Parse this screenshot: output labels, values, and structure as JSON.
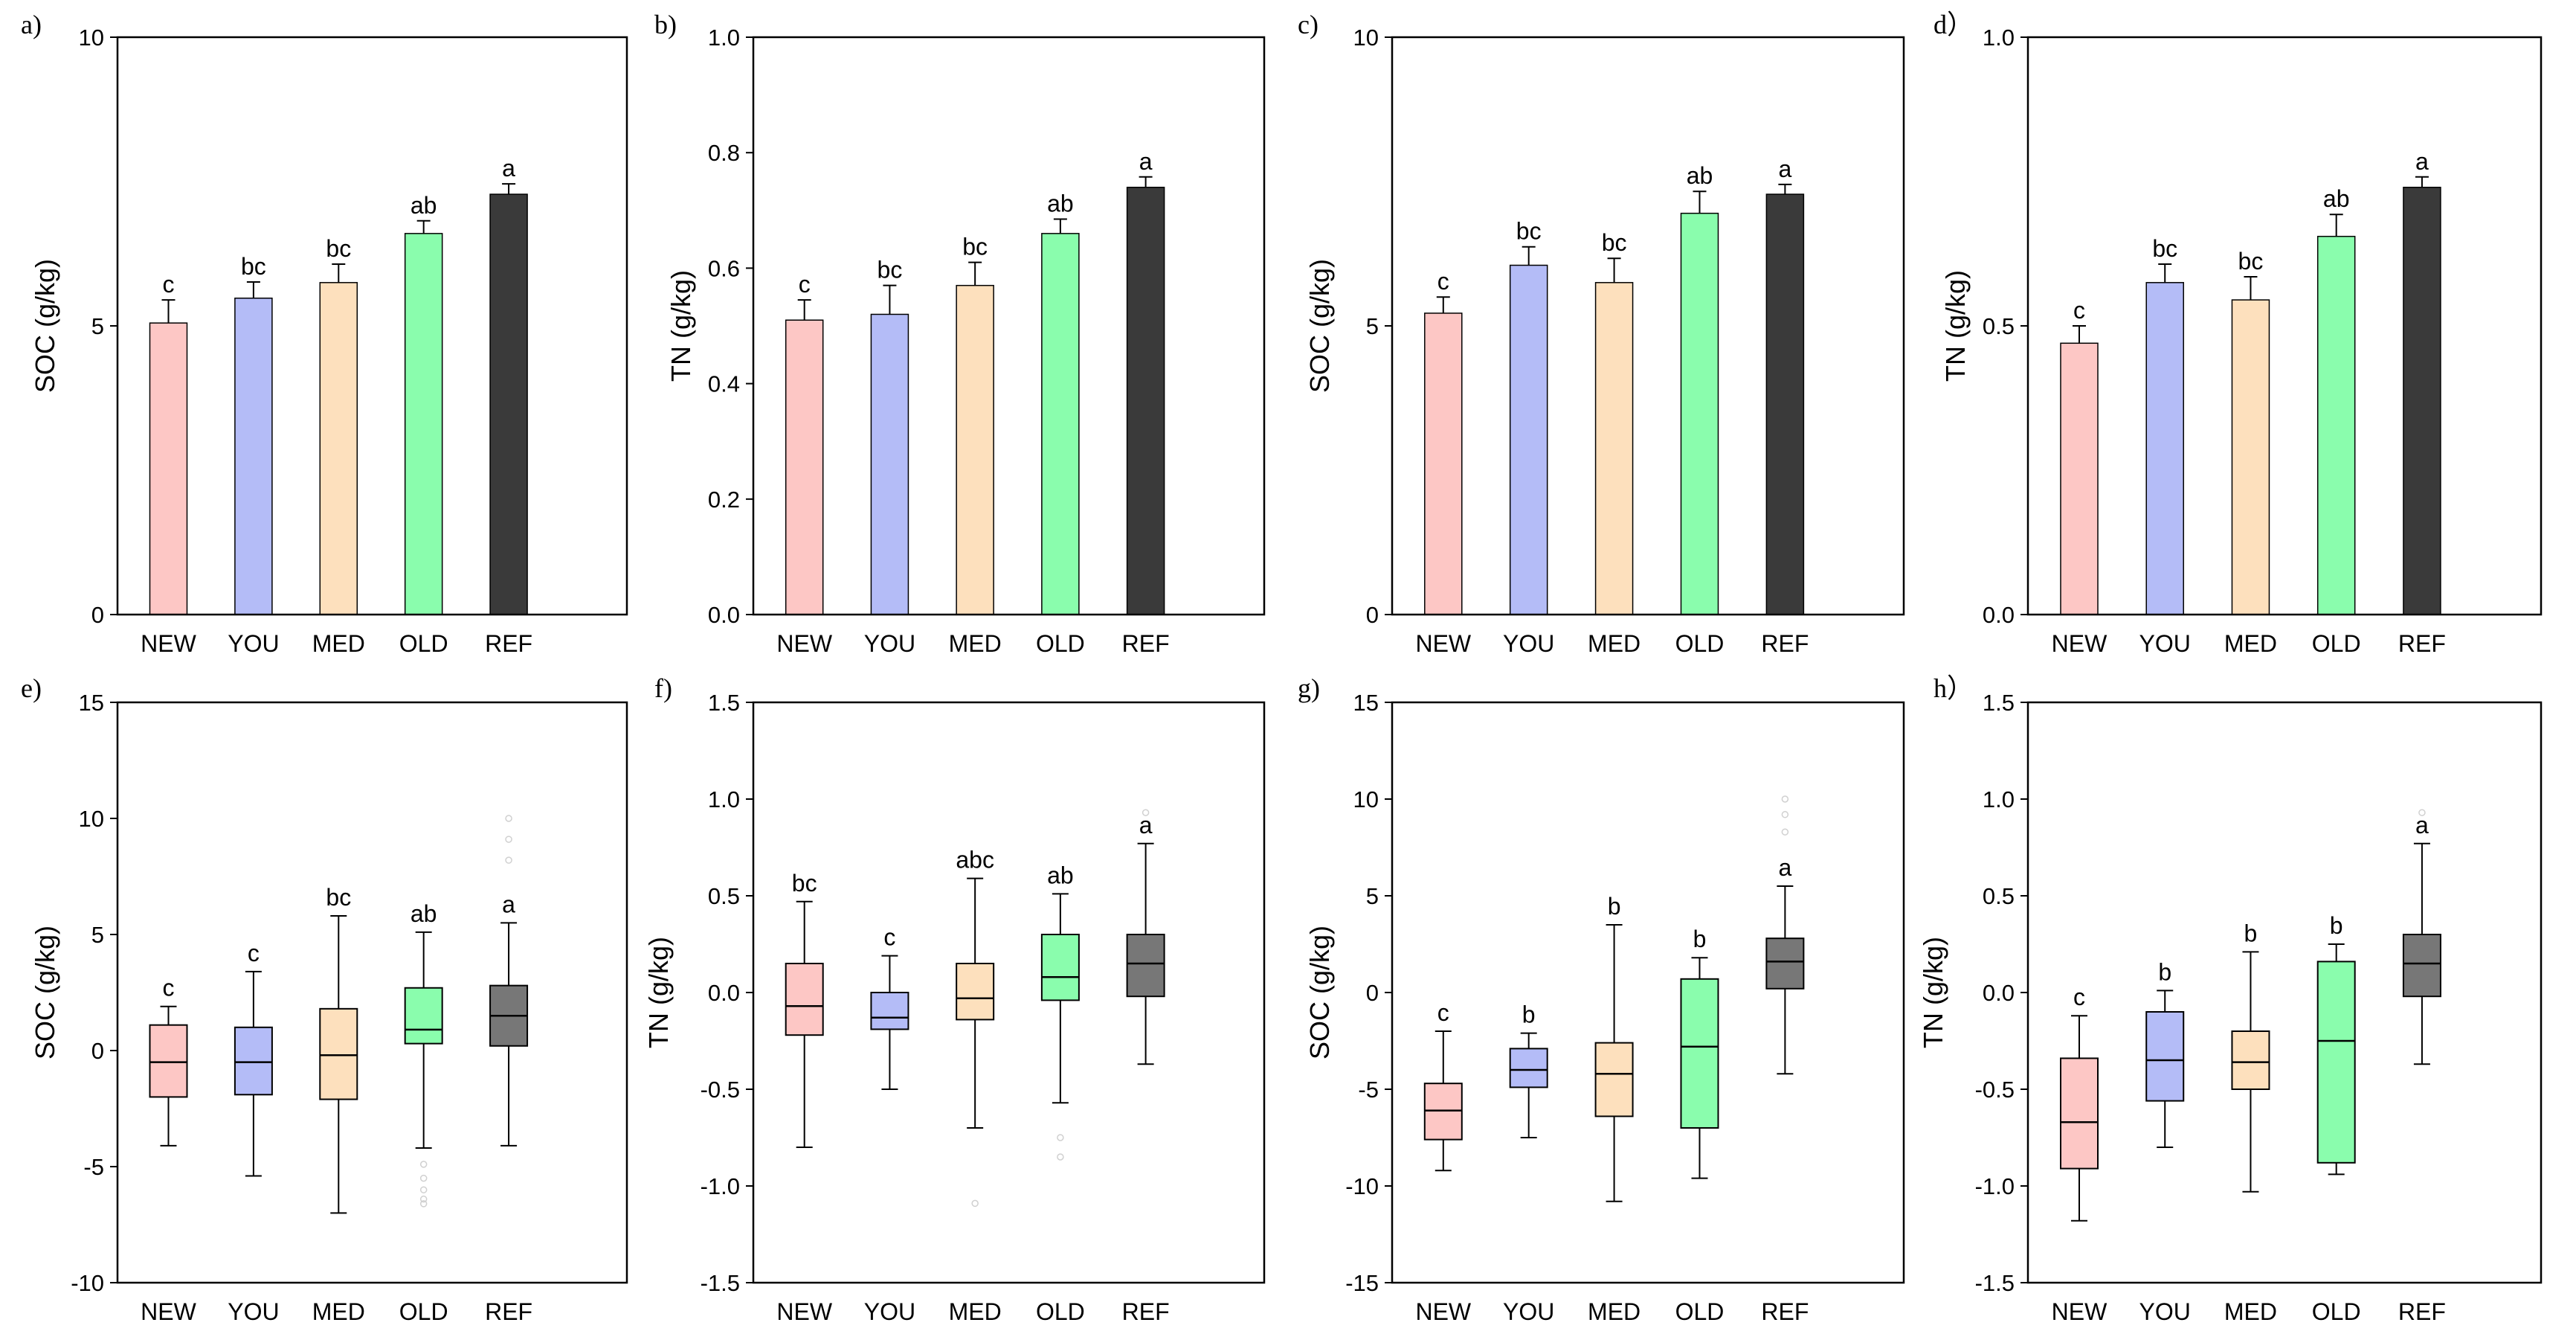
{
  "categories": [
    "NEW",
    "YOU",
    "MED",
    "OLD",
    "REF"
  ],
  "colors": {
    "NEW": "#fdc7c5",
    "YOU": "#b4bcf7",
    "MED": "#fde0bd",
    "OLD": "#8afdad",
    "REF": "#3a3a3a",
    "REF_box": "#777777",
    "outlier": "#d0d0d0"
  },
  "chart_data": [
    {
      "id": "a",
      "label": "a)",
      "type": "bar",
      "ylabel": "SOC (g/kg)",
      "ylim": [
        0,
        10
      ],
      "yticks": [
        "0",
        "5",
        "10"
      ],
      "categories": [
        "NEW",
        "YOU",
        "MED",
        "OLD",
        "REF"
      ],
      "values": [
        5.05,
        5.48,
        5.75,
        6.6,
        7.28
      ],
      "errors": [
        0.4,
        0.28,
        0.32,
        0.22,
        0.18
      ],
      "letters": [
        "c",
        "bc",
        "bc",
        "ab",
        "a"
      ]
    },
    {
      "id": "b",
      "label": "b)",
      "type": "bar",
      "ylabel": "TN (g/kg)",
      "ylim": [
        0,
        1.0
      ],
      "yticks": [
        "0.0",
        "0.2",
        "0.4",
        "0.6",
        "0.8",
        "1.0"
      ],
      "categories": [
        "NEW",
        "YOU",
        "MED",
        "OLD",
        "REF"
      ],
      "values": [
        0.51,
        0.52,
        0.57,
        0.66,
        0.74
      ],
      "errors": [
        0.035,
        0.05,
        0.04,
        0.025,
        0.018
      ],
      "letters": [
        "c",
        "bc",
        "bc",
        "ab",
        "a"
      ]
    },
    {
      "id": "c",
      "label": "c)",
      "type": "bar",
      "ylabel": "SOC (g/kg)",
      "ylim": [
        0,
        10
      ],
      "yticks": [
        "0",
        "5",
        "10"
      ],
      "categories": [
        "NEW",
        "YOU",
        "MED",
        "OLD",
        "REF"
      ],
      "values": [
        5.22,
        6.05,
        5.75,
        6.95,
        7.28
      ],
      "errors": [
        0.28,
        0.32,
        0.42,
        0.38,
        0.17
      ],
      "letters": [
        "c",
        "bc",
        "bc",
        "ab",
        "a"
      ]
    },
    {
      "id": "d",
      "label": "d）",
      "type": "bar",
      "ylabel": "TN (g/kg)",
      "ylim": [
        0,
        1.0
      ],
      "yticks": [
        "0.0",
        "0.5",
        "1.0"
      ],
      "categories": [
        "NEW",
        "YOU",
        "MED",
        "OLD",
        "REF"
      ],
      "values": [
        0.47,
        0.575,
        0.545,
        0.655,
        0.74
      ],
      "errors": [
        0.03,
        0.032,
        0.04,
        0.038,
        0.018
      ],
      "letters": [
        "c",
        "bc",
        "bc",
        "ab",
        "a"
      ]
    },
    {
      "id": "e",
      "label": "e)",
      "type": "box",
      "ylabel": "SOC (g/kg)",
      "ylim": [
        -10,
        15
      ],
      "yticks": [
        "-10",
        "-5",
        "0",
        "5",
        "10",
        "15"
      ],
      "categories": [
        "NEW",
        "YOU",
        "MED",
        "OLD",
        "REF"
      ],
      "boxes": [
        {
          "min": -4.1,
          "q1": -2.0,
          "median": -0.5,
          "q3": 1.1,
          "max": 1.9,
          "outliers": []
        },
        {
          "min": -5.4,
          "q1": -1.9,
          "median": -0.5,
          "q3": 1.0,
          "max": 3.4,
          "outliers": []
        },
        {
          "min": -7.0,
          "q1": -2.1,
          "median": -0.2,
          "q3": 1.8,
          "max": 5.8,
          "outliers": []
        },
        {
          "min": -4.2,
          "q1": 0.3,
          "median": 0.9,
          "q3": 2.7,
          "max": 5.1,
          "outliers": [
            -4.9,
            -5.5,
            -6.0,
            -6.4,
            -6.6
          ]
        },
        {
          "min": -4.1,
          "q1": 0.2,
          "median": 1.5,
          "q3": 2.8,
          "max": 5.5,
          "outliers": [
            8.2,
            9.1,
            10.0
          ]
        }
      ],
      "letters": [
        "c",
        "c",
        "bc",
        "ab",
        "a"
      ]
    },
    {
      "id": "f",
      "label": "f)",
      "type": "box",
      "ylabel": "TN (g/kg)",
      "ylim": [
        -1.5,
        1.5
      ],
      "yticks": [
        "-1.5",
        "-1.0",
        "-0.5",
        "0.0",
        "0.5",
        "1.0",
        "1.5"
      ],
      "categories": [
        "NEW",
        "YOU",
        "MED",
        "OLD",
        "REF"
      ],
      "boxes": [
        {
          "min": -0.8,
          "q1": -0.22,
          "median": -0.07,
          "q3": 0.15,
          "max": 0.47,
          "outliers": []
        },
        {
          "min": -0.5,
          "q1": -0.19,
          "median": -0.13,
          "q3": 0.0,
          "max": 0.19,
          "outliers": []
        },
        {
          "min": -0.7,
          "q1": -0.14,
          "median": -0.03,
          "q3": 0.15,
          "max": 0.59,
          "outliers": [
            -1.09
          ]
        },
        {
          "min": -0.57,
          "q1": -0.04,
          "median": 0.08,
          "q3": 0.3,
          "max": 0.51,
          "outliers": [
            -0.75,
            -0.85
          ]
        },
        {
          "min": -0.37,
          "q1": -0.02,
          "median": 0.15,
          "q3": 0.3,
          "max": 0.77,
          "outliers": [
            0.93
          ]
        }
      ],
      "letters": [
        "bc",
        "c",
        "abc",
        "ab",
        "a"
      ]
    },
    {
      "id": "g",
      "label": "g)",
      "type": "box",
      "ylabel": "SOC (g/kg)",
      "ylim": [
        -15,
        15
      ],
      "yticks": [
        "-15",
        "-10",
        "-5",
        "0",
        "5",
        "10",
        "15"
      ],
      "categories": [
        "NEW",
        "YOU",
        "MED",
        "OLD",
        "REF"
      ],
      "boxes": [
        {
          "min": -9.2,
          "q1": -7.6,
          "median": -6.1,
          "q3": -4.7,
          "max": -2.0,
          "outliers": []
        },
        {
          "min": -7.5,
          "q1": -4.9,
          "median": -4.0,
          "q3": -2.9,
          "max": -2.1,
          "outliers": []
        },
        {
          "min": -10.8,
          "q1": -6.4,
          "median": -4.2,
          "q3": -2.6,
          "max": 3.5,
          "outliers": []
        },
        {
          "min": -9.6,
          "q1": -7.0,
          "median": -2.8,
          "q3": 0.7,
          "max": 1.8,
          "outliers": []
        },
        {
          "min": -4.2,
          "q1": 0.2,
          "median": 1.6,
          "q3": 2.8,
          "max": 5.5,
          "outliers": [
            8.3,
            9.2,
            10.0
          ]
        }
      ],
      "letters": [
        "c",
        "b",
        "b",
        "b",
        "a"
      ]
    },
    {
      "id": "h",
      "label": "h）",
      "type": "box",
      "ylabel": "TN (g/kg)",
      "ylim": [
        -1.5,
        1.5
      ],
      "yticks": [
        "-1.5",
        "-1.0",
        "-0.5",
        "0.0",
        "0.5",
        "1.0",
        "1.5"
      ],
      "categories": [
        "NEW",
        "YOU",
        "MED",
        "OLD",
        "REF"
      ],
      "boxes": [
        {
          "min": -1.18,
          "q1": -0.91,
          "median": -0.67,
          "q3": -0.34,
          "max": -0.12,
          "outliers": []
        },
        {
          "min": -0.8,
          "q1": -0.56,
          "median": -0.35,
          "q3": -0.1,
          "max": 0.01,
          "outliers": []
        },
        {
          "min": -1.03,
          "q1": -0.5,
          "median": -0.36,
          "q3": -0.2,
          "max": 0.21,
          "outliers": []
        },
        {
          "min": -0.94,
          "q1": -0.88,
          "median": -0.25,
          "q3": 0.16,
          "max": 0.25,
          "outliers": []
        },
        {
          "min": -0.37,
          "q1": -0.02,
          "median": 0.15,
          "q3": 0.3,
          "max": 0.77,
          "outliers": [
            0.93
          ]
        }
      ],
      "letters": [
        "c",
        "b",
        "b",
        "b",
        "a"
      ]
    }
  ]
}
